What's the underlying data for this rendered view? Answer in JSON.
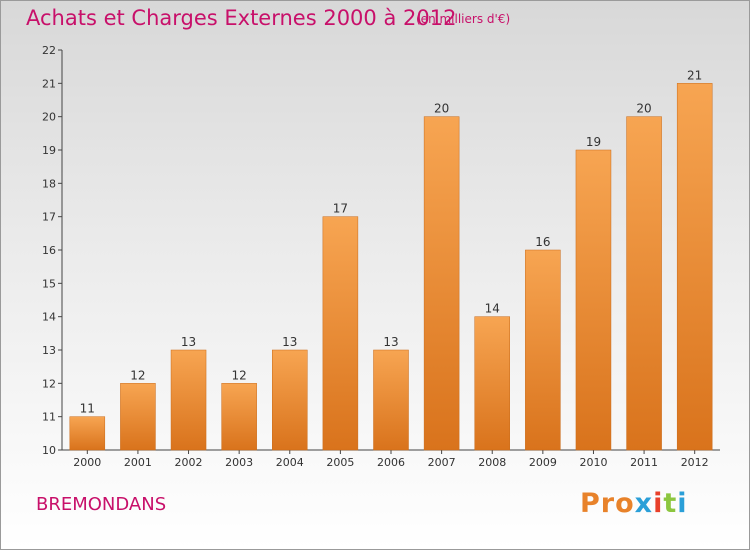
{
  "title": "Achats et Charges Externes 2000 à 2012",
  "unit": "(en milliers d'€)",
  "commune": "BREMONDANS",
  "logo": {
    "p1": "Pro",
    "p2": "x",
    "p3": "i",
    "p4": "t",
    "p5": "i"
  },
  "colors": {
    "bar_top": "#f7a552",
    "bar_bottom": "#d9731c",
    "text_accent": "#c8106a"
  },
  "chart_data": {
    "type": "bar",
    "title": "Achats et Charges Externes 2000 à 2012",
    "categories": [
      "2000",
      "2001",
      "2002",
      "2003",
      "2004",
      "2005",
      "2006",
      "2007",
      "2008",
      "2009",
      "2010",
      "2011",
      "2012"
    ],
    "values": [
      11,
      12,
      13,
      12,
      13,
      17,
      13,
      20,
      14,
      16,
      19,
      20,
      21
    ],
    "ylim": [
      10,
      22
    ],
    "yticks": [
      10,
      11,
      12,
      13,
      14,
      15,
      16,
      17,
      18,
      19,
      20,
      21,
      22
    ],
    "grid": false,
    "xlabel": "",
    "ylabel": ""
  }
}
